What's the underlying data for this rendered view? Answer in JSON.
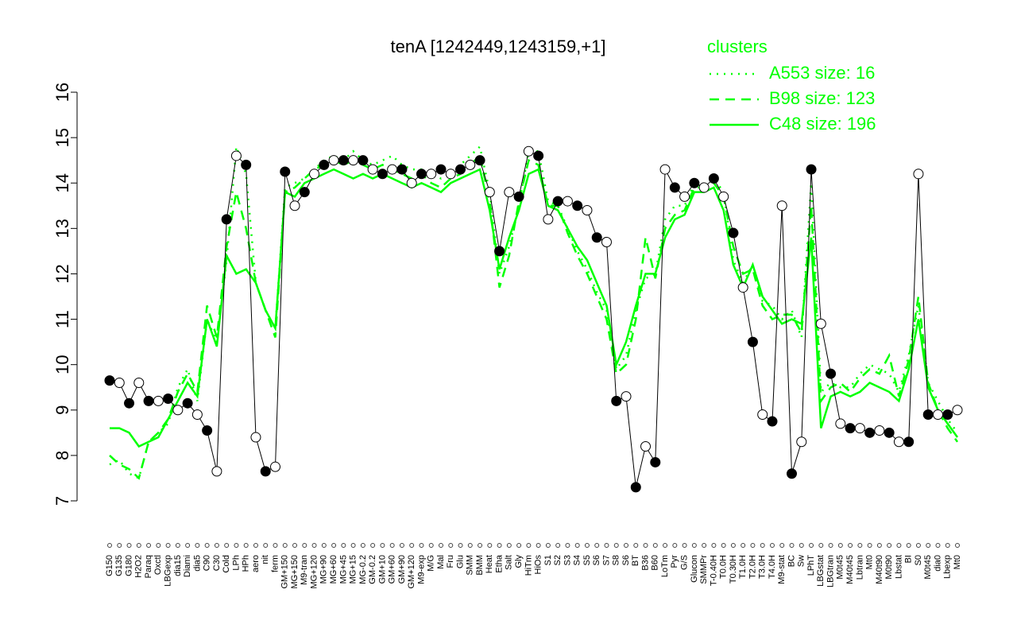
{
  "chart_data": {
    "type": "line",
    "title": "tenA [1242449,1243159,+1]",
    "legend_title": "clusters",
    "legend_position": "top-right",
    "categories": [
      "G150",
      "G135",
      "G180",
      "H2O2",
      "Paraq",
      "Oxctl",
      "LBGexp",
      "dia15",
      "Diami",
      "dia5",
      "C90",
      "C30",
      "Cold",
      "LPh",
      "HPh",
      "aero",
      "nit",
      "ferm",
      "GM+150",
      "MG+150",
      "M9-tran",
      "MG+120",
      "MG+90",
      "MG+60",
      "MG+45",
      "MG+15",
      "MG-0.2",
      "GM-0.2",
      "GM+10",
      "GM+60",
      "GM+90",
      "GM+120",
      "M9-exp",
      "M/G",
      "Mal",
      "Fru",
      "Glu",
      "SMM",
      "BMM",
      "Heat",
      "Etha",
      "Salt",
      "Gly",
      "HiTm",
      "HiOs",
      "S1",
      "S2",
      "S3",
      "S4",
      "S5",
      "S6",
      "S7",
      "S8",
      "S6",
      "BT",
      "B36",
      "B60",
      "LoTm",
      "Pyr",
      "G/S",
      "Glucon",
      "SMMPr",
      "T-0.40H",
      "T0.0H",
      "T0.30H",
      "T1.0H",
      "T2.0H",
      "T3.0H",
      "T4.0H",
      "M9-stat",
      "BC",
      "Sw",
      "LPhT",
      "LBGstat",
      "LBGtran",
      "M0t45",
      "M40t45",
      "Lbtran",
      "Mt0",
      "M40t90",
      "M0t90",
      "Lbstat",
      "BI",
      "S0",
      "M0t45",
      "dia0",
      "Lbexp",
      "Mt0"
    ],
    "values": [
      9.65,
      9.6,
      9.15,
      9.6,
      9.2,
      9.2,
      9.25,
      9.0,
      9.15,
      8.9,
      8.55,
      7.65,
      13.2,
      14.6,
      14.4,
      8.4,
      7.65,
      7.75,
      14.25,
      13.5,
      13.8,
      14.2,
      14.4,
      14.5,
      14.5,
      14.5,
      14.5,
      14.3,
      14.2,
      14.3,
      14.3,
      14.0,
      14.2,
      14.2,
      14.3,
      14.2,
      14.3,
      14.4,
      14.5,
      13.8,
      12.5,
      13.8,
      13.7,
      14.7,
      14.6,
      13.2,
      13.6,
      13.6,
      13.5,
      13.4,
      12.8,
      12.7,
      9.2,
      9.3,
      7.3,
      8.2,
      7.85,
      14.3,
      13.9,
      13.7,
      14.0,
      13.9,
      14.1,
      13.7,
      12.9,
      11.7,
      10.5,
      8.9,
      8.75,
      13.5,
      7.6,
      8.3,
      14.3,
      10.9,
      9.8,
      8.7,
      8.6,
      8.6,
      8.5,
      8.55,
      8.5,
      8.3,
      8.3,
      14.2,
      8.9,
      8.9,
      8.9,
      9.0
    ],
    "color": "#000000",
    "series": [
      {
        "name": "A553 size: 16",
        "color": "#00ff00",
        "style": "dotted",
        "values": [
          7.8,
          7.9,
          7.6,
          7.5,
          8.3,
          8.5,
          8.7,
          9.5,
          9.9,
          9.2,
          11.0,
          10.5,
          12.3,
          14.8,
          14.2,
          11.8,
          11.2,
          10.8,
          13.9,
          14.0,
          14.1,
          14.3,
          14.5,
          14.6,
          14.5,
          14.7,
          14.5,
          14.4,
          14.5,
          14.6,
          14.4,
          14.3,
          14.3,
          14.2,
          14.1,
          14.2,
          14.4,
          14.6,
          14.8,
          13.8,
          12.0,
          12.6,
          13.5,
          14.7,
          14.7,
          13.6,
          13.5,
          13.0,
          12.5,
          12.1,
          11.6,
          11.2,
          9.9,
          10.2,
          11.2,
          11.9,
          12.0,
          13.2,
          13.5,
          13.5,
          14.0,
          13.9,
          14.1,
          13.8,
          12.3,
          11.8,
          12.2,
          11.4,
          11.3,
          11.0,
          11.2,
          10.6,
          14.0,
          9.4,
          9.6,
          9.5,
          9.5,
          9.8,
          10.0,
          9.9,
          9.8,
          9.4,
          10.2,
          11.3,
          9.6,
          9.2,
          8.8,
          8.5
        ]
      },
      {
        "name": "B98 size: 123",
        "color": "#00ff00",
        "style": "dashed",
        "values": [
          8.0,
          7.8,
          7.7,
          7.5,
          8.3,
          8.5,
          8.8,
          9.4,
          9.8,
          9.4,
          11.3,
          10.6,
          12.6,
          13.8,
          13.0,
          11.8,
          11.2,
          10.6,
          13.8,
          13.9,
          14.1,
          14.3,
          14.4,
          14.5,
          14.4,
          14.5,
          14.4,
          14.3,
          14.4,
          14.3,
          14.2,
          14.1,
          14.2,
          14.0,
          13.9,
          14.1,
          14.2,
          14.4,
          14.6,
          13.6,
          11.7,
          12.4,
          13.6,
          14.5,
          14.4,
          13.5,
          13.5,
          12.9,
          12.4,
          12.0,
          11.5,
          11.0,
          9.8,
          10.0,
          11.0,
          12.8,
          11.9,
          13.0,
          13.3,
          13.4,
          13.9,
          13.9,
          14.0,
          13.7,
          12.6,
          12.0,
          12.1,
          11.3,
          11.0,
          11.1,
          11.1,
          10.7,
          13.5,
          9.2,
          9.5,
          9.6,
          9.4,
          9.7,
          9.9,
          9.8,
          10.2,
          9.3,
          10.1,
          11.5,
          9.6,
          9.0,
          8.6,
          8.3
        ]
      },
      {
        "name": "C48 size: 196",
        "color": "#00ff00",
        "style": "solid",
        "values": [
          8.6,
          8.6,
          8.5,
          8.2,
          8.3,
          8.4,
          8.8,
          9.2,
          9.6,
          9.3,
          11.0,
          10.4,
          12.4,
          12.0,
          12.1,
          11.8,
          11.2,
          10.8,
          13.8,
          13.7,
          14.0,
          14.1,
          14.2,
          14.3,
          14.2,
          14.1,
          14.2,
          14.1,
          14.2,
          14.1,
          14.0,
          13.9,
          14.0,
          13.9,
          13.8,
          14.0,
          14.1,
          14.2,
          14.3,
          13.4,
          12.1,
          12.8,
          13.4,
          14.2,
          14.3,
          13.5,
          13.4,
          13.0,
          12.6,
          12.3,
          11.8,
          11.3,
          10.0,
          10.5,
          11.3,
          12.0,
          12.0,
          12.8,
          13.2,
          13.3,
          13.8,
          13.8,
          13.9,
          13.4,
          12.2,
          11.7,
          12.2,
          11.5,
          11.2,
          10.9,
          11.0,
          10.9,
          12.8,
          8.6,
          9.3,
          9.4,
          9.3,
          9.4,
          9.6,
          9.5,
          9.4,
          9.2,
          9.9,
          11.0,
          9.5,
          9.0,
          8.7,
          8.4
        ]
      }
    ],
    "ylim": [
      7,
      16
    ],
    "yticks": [
      7,
      8,
      9,
      10,
      11,
      12,
      13,
      14,
      15,
      16
    ]
  }
}
